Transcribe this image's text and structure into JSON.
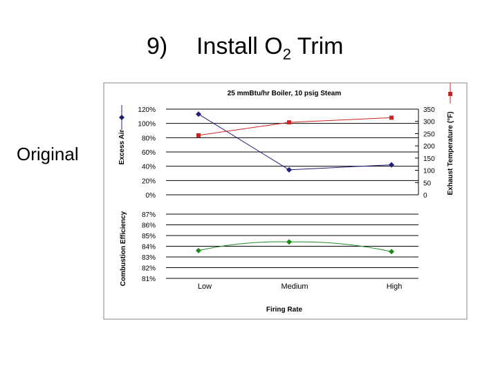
{
  "slide": {
    "number": "9)",
    "title_main": "Install O",
    "title_sub": "2",
    "title_end": " Trim",
    "side_label": "Original"
  },
  "chart_data": [
    {
      "type": "line",
      "title": "25 mmBtu/hr Boiler,  10 psig Steam",
      "categories": [
        "Low",
        "Medium",
        "High"
      ],
      "xlabel": "Firing Rate",
      "ylabel": "Excess Air",
      "y2label": "Exhaust Temperature (°F)",
      "ylim": [
        0,
        1.2
      ],
      "yticks": [
        "0%",
        "20%",
        "40%",
        "60%",
        "80%",
        "100%",
        "120%"
      ],
      "y2lim": [
        0,
        350
      ],
      "y2ticks": [
        "0",
        "50",
        "100",
        "150",
        "200",
        "250",
        "300",
        "350"
      ],
      "grid": true,
      "series": [
        {
          "axis": "left",
          "color": "#1f1f7a",
          "marker": "diamond",
          "values": [
            1.13,
            0.35,
            0.42
          ]
        },
        {
          "axis": "right",
          "color": "#cc2222",
          "marker": "square",
          "values": [
            243,
            296,
            315
          ]
        }
      ]
    },
    {
      "type": "line",
      "categories": [
        "Low",
        "Medium",
        "High"
      ],
      "xlabel": "Firing Rate",
      "ylabel": "Combustion Efficiency",
      "ylim": [
        0.81,
        0.87
      ],
      "yticks": [
        "81%",
        "82%",
        "83%",
        "84%",
        "85%",
        "86%",
        "87%"
      ],
      "grid": true,
      "series": [
        {
          "axis": "left",
          "color": "#1e8a1e",
          "marker": "diamond",
          "values": [
            0.836,
            0.844,
            0.835
          ]
        }
      ]
    }
  ]
}
